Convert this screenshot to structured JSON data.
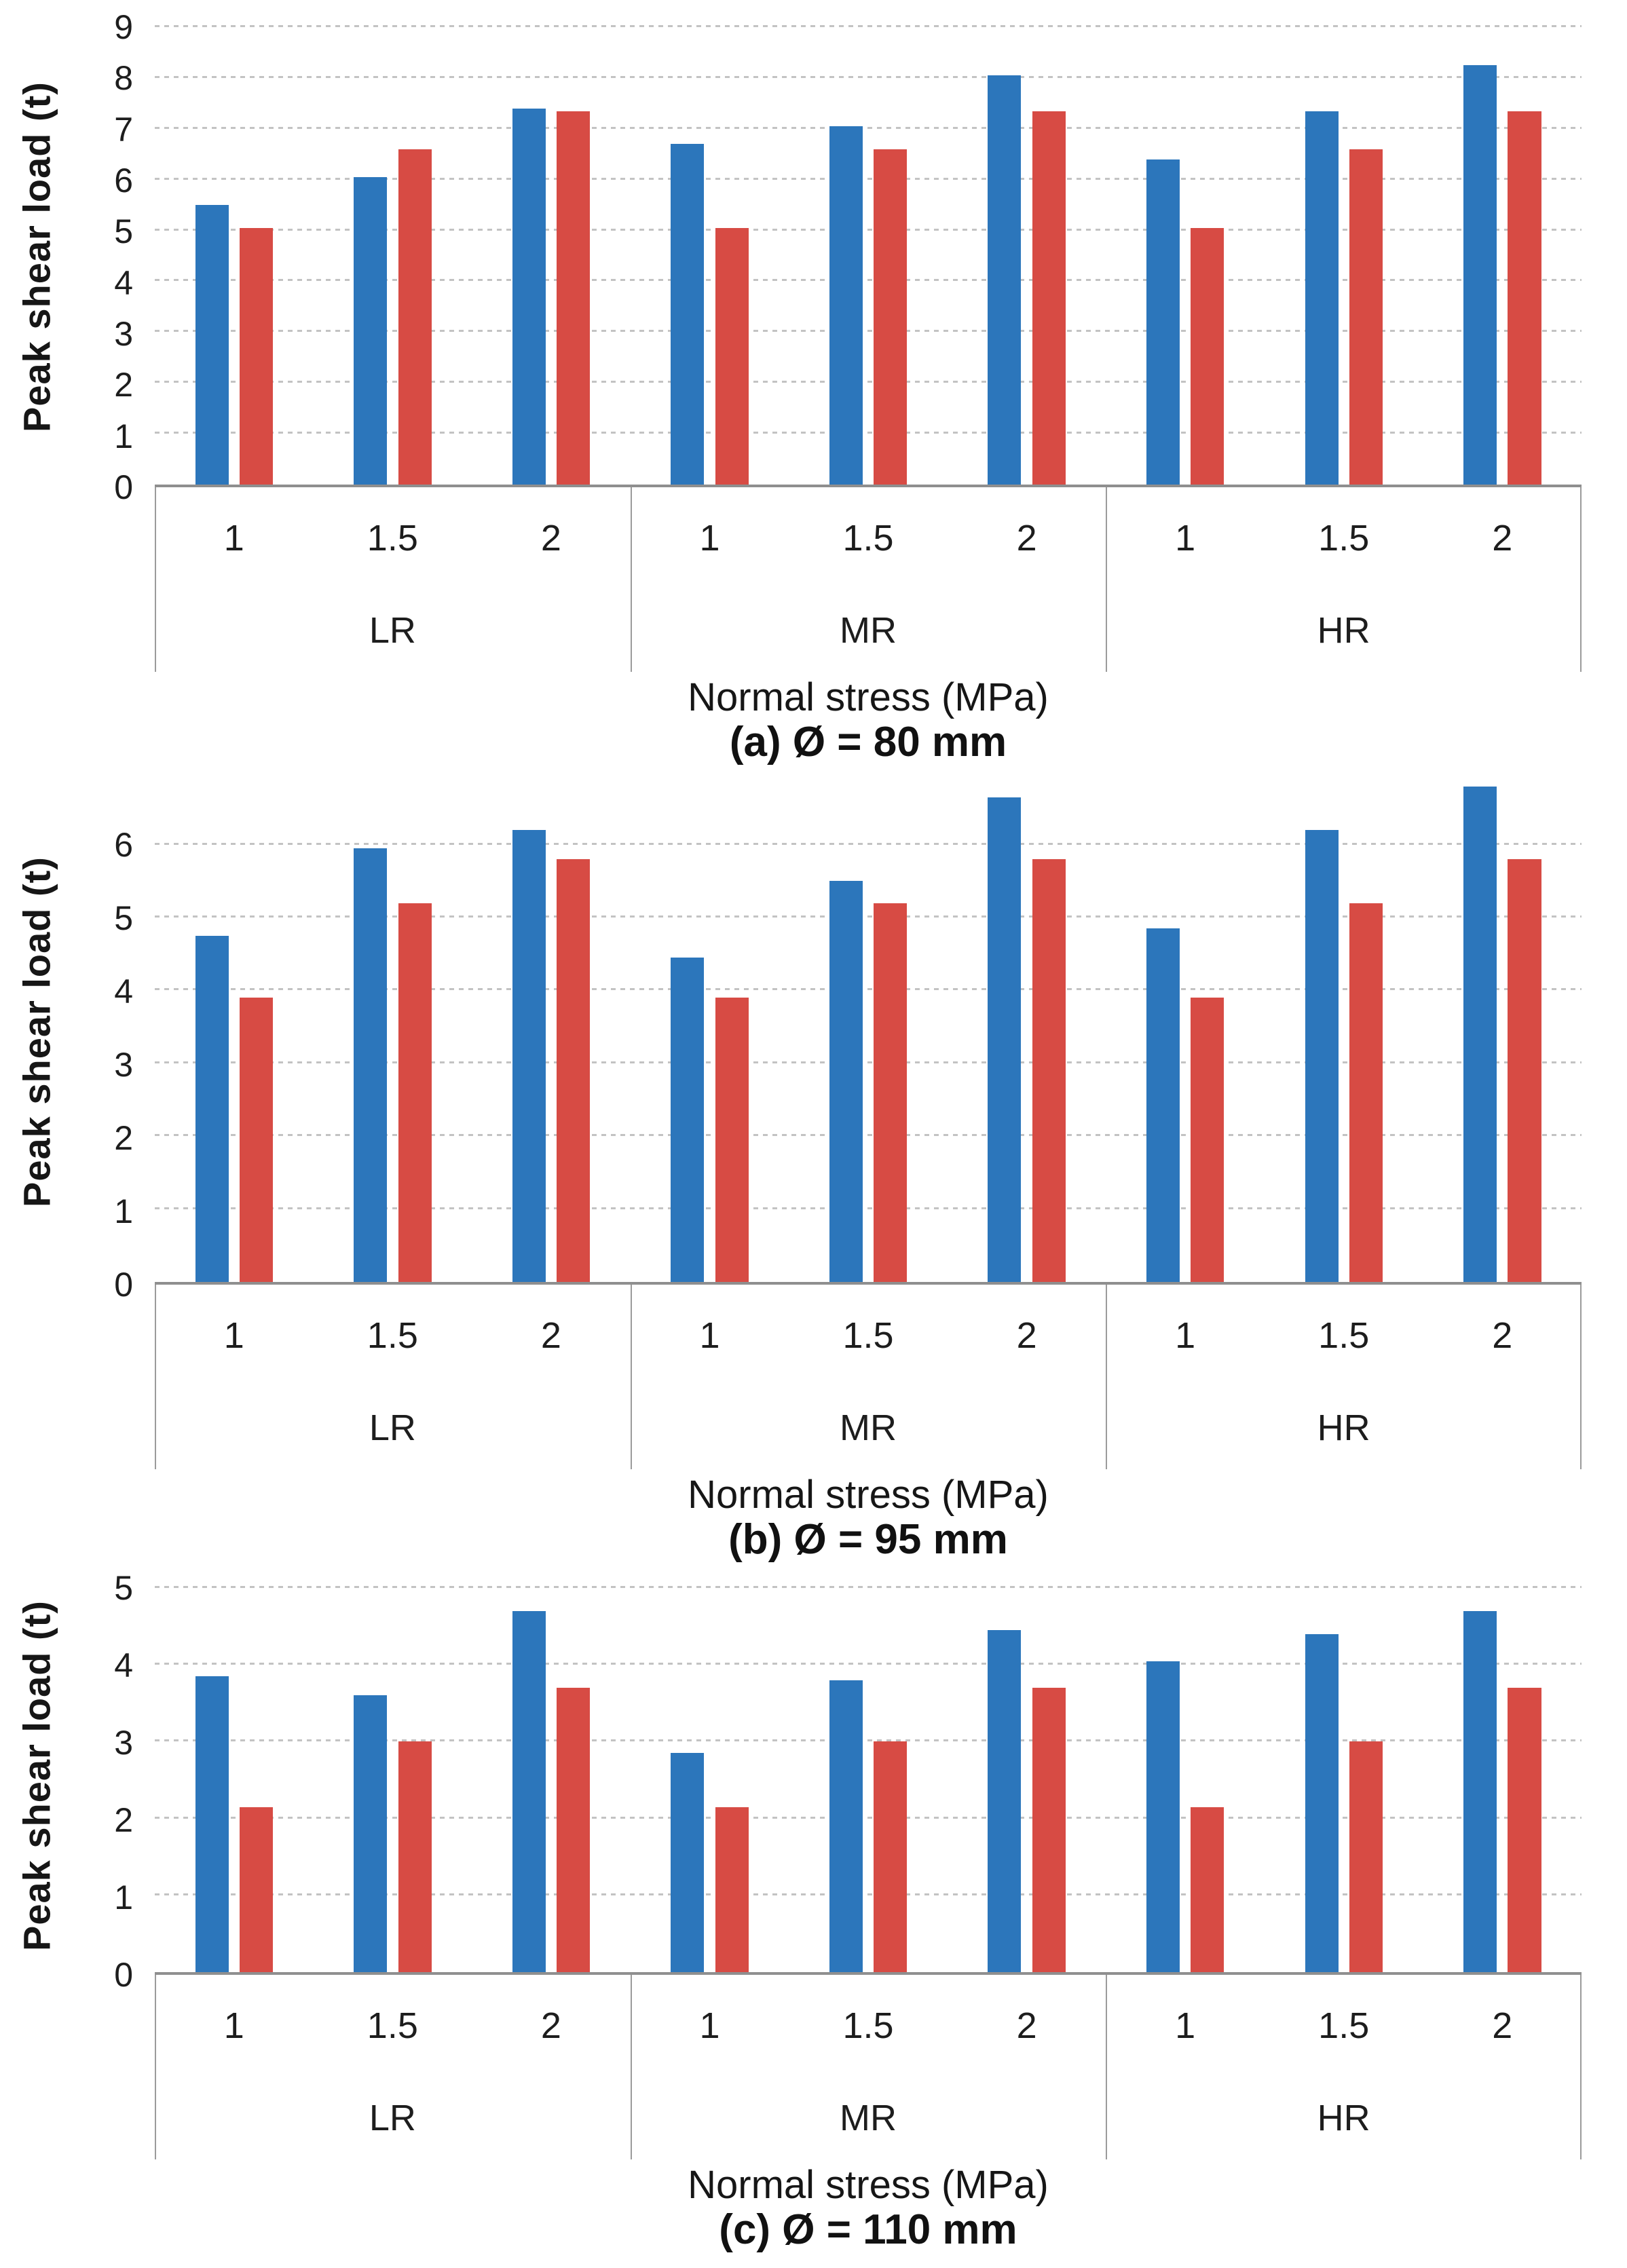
{
  "figure": {
    "series_colors": {
      "blue": "#2c76bb",
      "red": "#d74b44"
    },
    "gridline_color": "#c3c3c3",
    "axis_color": "#8f8f8f",
    "box_border_color": "#9b9b9b",
    "text_color": "#1d1d1d"
  },
  "chart_data": [
    {
      "type": "bar",
      "caption": "(a) Ø = 80 mm",
      "ylabel": "Peak shear load (t)",
      "xlabel": "Normal stress (MPa)",
      "ylim": [
        0,
        9
      ],
      "axis_top": 9.0,
      "yticks": [
        0,
        1,
        2,
        3,
        4,
        5,
        6,
        7,
        8,
        9
      ],
      "grid": "horizontal-dashed",
      "legend": null,
      "group_labels": [
        "LR",
        "MR",
        "HR"
      ],
      "categories": [
        "1",
        "1.5",
        "2",
        "1",
        "1.5",
        "2",
        "1",
        "1.5",
        "2"
      ],
      "series": [
        {
          "name": "blue",
          "color": "#2c76bb",
          "values": [
            5.5,
            6.05,
            7.4,
            6.7,
            7.05,
            8.05,
            6.4,
            7.35,
            8.25
          ]
        },
        {
          "name": "red",
          "color": "#d74b44",
          "values": [
            5.05,
            6.6,
            7.35,
            5.05,
            6.6,
            7.35,
            5.05,
            6.6,
            7.35
          ]
        }
      ]
    },
    {
      "type": "bar",
      "caption": "(b) Ø = 95 mm",
      "ylabel": "Peak shear load (t)",
      "xlabel": "Normal stress (MPa)",
      "ylim": [
        0,
        6.9
      ],
      "axis_top": 6.9,
      "yticks": [
        0,
        1,
        2,
        3,
        4,
        5,
        6
      ],
      "grid": "horizontal-dashed",
      "legend": null,
      "group_labels": [
        "LR",
        "MR",
        "HR"
      ],
      "categories": [
        "1",
        "1.5",
        "2",
        "1",
        "1.5",
        "2",
        "1",
        "1.5",
        "2"
      ],
      "series": [
        {
          "name": "blue",
          "color": "#2c76bb",
          "values": [
            4.75,
            5.95,
            6.2,
            4.45,
            5.5,
            6.65,
            4.85,
            6.2,
            6.8
          ]
        },
        {
          "name": "red",
          "color": "#d74b44",
          "values": [
            3.9,
            5.2,
            5.8,
            3.9,
            5.2,
            5.8,
            3.9,
            5.2,
            5.8
          ]
        }
      ]
    },
    {
      "type": "bar",
      "caption": "(c) Ø = 110 mm",
      "ylabel": "Peak shear load (t)",
      "xlabel": "Normal stress (MPa)",
      "ylim": [
        0,
        5.15
      ],
      "axis_top": 5.15,
      "yticks": [
        0,
        1,
        2,
        3,
        4,
        5
      ],
      "grid": "horizontal-dashed",
      "legend": null,
      "group_labels": [
        "LR",
        "MR",
        "HR"
      ],
      "categories": [
        "1",
        "1.5",
        "2",
        "1",
        "1.5",
        "2",
        "1",
        "1.5",
        "2"
      ],
      "series": [
        {
          "name": "blue",
          "color": "#2c76bb",
          "values": [
            3.85,
            3.6,
            4.7,
            2.85,
            3.8,
            4.45,
            4.05,
            4.4,
            4.7
          ]
        },
        {
          "name": "red",
          "color": "#d74b44",
          "values": [
            2.15,
            3.0,
            3.7,
            2.15,
            3.0,
            3.7,
            2.15,
            3.0,
            3.7
          ]
        }
      ]
    }
  ]
}
